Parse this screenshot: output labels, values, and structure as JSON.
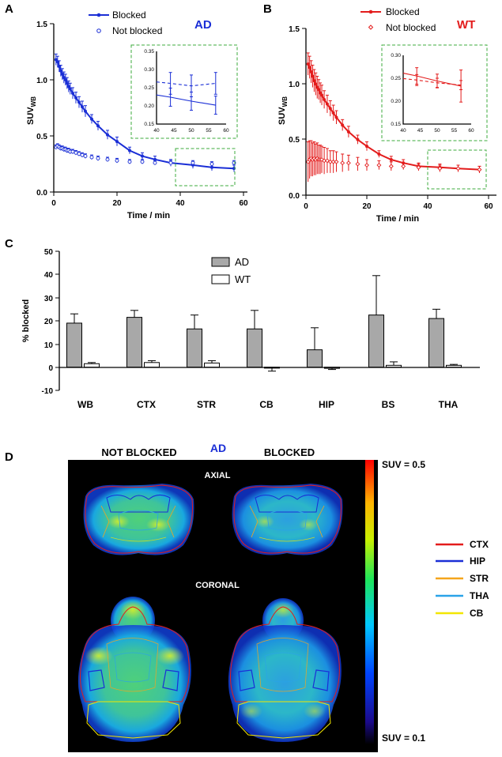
{
  "colors": {
    "ad": "#1a2ed6",
    "wt": "#e31c1c",
    "bar_ad": "#a8a8a8",
    "bar_wt": "#ffffff",
    "inset_border": "#3cab3c"
  },
  "panel_labels": {
    "a": "A",
    "b": "B",
    "c": "C",
    "d": "D"
  },
  "chart_data": [
    {
      "id": "A",
      "type": "line",
      "title": "AD",
      "xlabel": "Time / min",
      "ylabel_main": "SUV",
      "ylabel_sub": "WB",
      "xlim": [
        0,
        60
      ],
      "ylim": [
        0,
        1.5
      ],
      "xticks": [
        "0",
        "20",
        "40",
        "60"
      ],
      "yticks": [
        "0.0",
        "0.5",
        "1.0",
        "1.5"
      ],
      "legend": [
        "Blocked",
        "Not blocked"
      ],
      "series": [
        {
          "name": "Blocked",
          "x": [
            0.7,
            1.2,
            1.7,
            2.2,
            2.7,
            3.2,
            3.7,
            4.2,
            4.7,
            5.2,
            6,
            7,
            8,
            9,
            10,
            12,
            14,
            17,
            20,
            24,
            28,
            32,
            37,
            44,
            50,
            57
          ],
          "y": [
            1.18,
            1.16,
            1.12,
            1.08,
            1.05,
            1.02,
            1.0,
            0.97,
            0.94,
            0.92,
            0.88,
            0.84,
            0.8,
            0.76,
            0.72,
            0.65,
            0.59,
            0.51,
            0.45,
            0.37,
            0.32,
            0.29,
            0.26,
            0.24,
            0.22,
            0.21
          ],
          "err": [
            0.05,
            0.05,
            0.05,
            0.05,
            0.05,
            0.05,
            0.05,
            0.05,
            0.05,
            0.05,
            0.05,
            0.05,
            0.05,
            0.05,
            0.05,
            0.04,
            0.04,
            0.04,
            0.04,
            0.03,
            0.03,
            0.03,
            0.03,
            0.03,
            0.03,
            0.03
          ]
        },
        {
          "name": "Not blocked",
          "x": [
            0.7,
            1.2,
            1.7,
            2.2,
            2.7,
            3.2,
            3.7,
            4.2,
            4.7,
            5.2,
            6,
            7,
            8,
            9,
            10,
            12,
            14,
            17,
            20,
            24,
            28,
            32,
            37,
            44,
            50,
            57
          ],
          "y": [
            0.4,
            0.41,
            0.4,
            0.39,
            0.39,
            0.38,
            0.38,
            0.37,
            0.37,
            0.36,
            0.36,
            0.35,
            0.34,
            0.33,
            0.32,
            0.31,
            0.3,
            0.29,
            0.28,
            0.27,
            0.27,
            0.26,
            0.26,
            0.26,
            0.25,
            0.26
          ],
          "err": [
            0.02,
            0.02,
            0.02,
            0.02,
            0.02,
            0.02,
            0.02,
            0.02,
            0.02,
            0.02,
            0.02,
            0.02,
            0.02,
            0.02,
            0.02,
            0.02,
            0.02,
            0.02,
            0.02,
            0.02,
            0.02,
            0.02,
            0.02,
            0.02,
            0.02,
            0.02
          ]
        }
      ],
      "inset": {
        "xlim": [
          40,
          60
        ],
        "ylim": [
          0.15,
          0.35
        ],
        "xticks": [
          "40",
          "45",
          "50",
          "55",
          "60"
        ],
        "yticks": [
          "0.15",
          "0.20",
          "0.25",
          "0.30",
          "0.35"
        ],
        "x": [
          44,
          50,
          57
        ],
        "blocked": [
          0.224,
          0.213,
          0.202
        ],
        "blocked_err": [
          0.025,
          0.025,
          0.025
        ],
        "not_blocked": [
          0.262,
          0.255,
          0.262
        ],
        "not_blocked_err": [
          0.03,
          0.03,
          0.03
        ]
      }
    },
    {
      "id": "B",
      "type": "line",
      "title": "WT",
      "xlabel": "Time / min",
      "ylabel_main": "SUV",
      "ylabel_sub": "WB",
      "xlim": [
        0,
        60
      ],
      "ylim": [
        0,
        1.5
      ],
      "xticks": [
        "0",
        "20",
        "40",
        "60"
      ],
      "yticks": [
        "0.0",
        "0.5",
        "1.0",
        "1.5"
      ],
      "legend": [
        "Blocked",
        "Not blocked"
      ],
      "series": [
        {
          "name": "Blocked",
          "x": [
            0.7,
            1.2,
            1.7,
            2.2,
            2.7,
            3.2,
            3.7,
            4.2,
            4.7,
            5.2,
            6,
            7,
            8,
            9,
            10,
            12,
            14,
            17,
            20,
            24,
            28,
            32,
            37,
            44,
            50,
            57
          ],
          "y": [
            1.18,
            1.15,
            1.11,
            1.07,
            1.03,
            1.0,
            0.97,
            0.95,
            0.92,
            0.9,
            0.86,
            0.82,
            0.78,
            0.74,
            0.7,
            0.63,
            0.57,
            0.5,
            0.44,
            0.37,
            0.32,
            0.29,
            0.26,
            0.25,
            0.24,
            0.23
          ],
          "err": [
            0.1,
            0.1,
            0.1,
            0.1,
            0.1,
            0.1,
            0.1,
            0.09,
            0.09,
            0.09,
            0.08,
            0.08,
            0.07,
            0.07,
            0.06,
            0.05,
            0.05,
            0.04,
            0.04,
            0.03,
            0.03,
            0.03,
            0.03,
            0.03,
            0.03,
            0.03
          ]
        },
        {
          "name": "Not blocked",
          "x": [
            0.7,
            1.2,
            1.7,
            2.2,
            2.7,
            3.2,
            3.7,
            4.2,
            4.7,
            5.2,
            6,
            7,
            8,
            9,
            10,
            12,
            14,
            17,
            20,
            24,
            28,
            32,
            37,
            44,
            50,
            57
          ],
          "y": [
            0.3,
            0.32,
            0.33,
            0.32,
            0.33,
            0.32,
            0.33,
            0.32,
            0.32,
            0.32,
            0.31,
            0.31,
            0.3,
            0.3,
            0.3,
            0.29,
            0.29,
            0.28,
            0.27,
            0.27,
            0.26,
            0.26,
            0.25,
            0.24,
            0.24,
            0.23
          ],
          "err": [
            0.18,
            0.17,
            0.16,
            0.15,
            0.15,
            0.14,
            0.14,
            0.13,
            0.13,
            0.12,
            0.12,
            0.11,
            0.1,
            0.1,
            0.09,
            0.08,
            0.07,
            0.06,
            0.05,
            0.04,
            0.04,
            0.03,
            0.03,
            0.03,
            0.03,
            0.03
          ]
        }
      ],
      "inset": {
        "xlim": [
          40,
          60
        ],
        "ylim": [
          0.15,
          0.3
        ],
        "xticks": [
          "40",
          "45",
          "50",
          "55",
          "60"
        ],
        "yticks": [
          "0.15",
          "0.20",
          "0.25",
          "0.30"
        ],
        "x": [
          44,
          50,
          57
        ],
        "blocked": [
          0.255,
          0.244,
          0.233
        ],
        "blocked_err": [
          0.018,
          0.015,
          0.035
        ],
        "not_blocked": [
          0.246,
          0.24,
          0.235
        ],
        "not_blocked_err": [
          0.012,
          0.01,
          0.01
        ]
      }
    },
    {
      "id": "C",
      "type": "bar",
      "ylabel": "% blocked",
      "ylim": [
        -10,
        50
      ],
      "yticks": [
        "-10",
        "0",
        "10",
        "20",
        "30",
        "40",
        "50"
      ],
      "categories": [
        "WB",
        "CTX",
        "STR",
        "CB",
        "HIP",
        "BS",
        "THA"
      ],
      "legend": [
        "AD",
        "WT"
      ],
      "series": [
        {
          "name": "AD",
          "values": [
            19,
            21.5,
            16.5,
            16.5,
            7.5,
            22.5,
            21
          ],
          "err": [
            4,
            3,
            6,
            8,
            9.5,
            17,
            4
          ]
        },
        {
          "name": "WT",
          "values": [
            1.5,
            2,
            1.8,
            -0.2,
            -0.5,
            0.8,
            0.8
          ],
          "err": [
            0.5,
            0.8,
            1,
            1.5,
            0.5,
            1.5,
            0.4
          ]
        }
      ]
    }
  ],
  "panel_d": {
    "group": "AD",
    "col_not_blocked": "NOT BLOCKED",
    "col_blocked": "BLOCKED",
    "axial": "AXIAL",
    "coronal": "CORONAL",
    "scale_max": "SUV = 0.5",
    "scale_min": "SUV = 0.1",
    "regions": [
      {
        "label": "CTX",
        "color": "#e31c1c"
      },
      {
        "label": "HIP",
        "color": "#1a2ed6"
      },
      {
        "label": "STR",
        "color": "#f5a51c"
      },
      {
        "label": "THA",
        "color": "#2aa3e8"
      },
      {
        "label": "CB",
        "color": "#f2e600"
      }
    ]
  }
}
